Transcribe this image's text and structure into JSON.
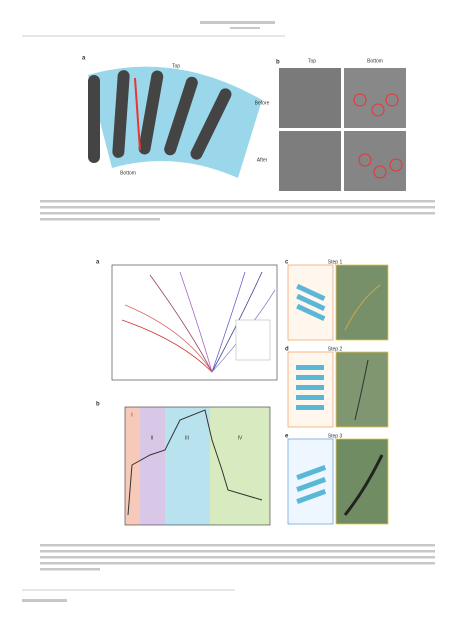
{
  "figure_top": {
    "panel_labels": [
      "a",
      "b"
    ],
    "diagram_labels": [
      "Top",
      "Bottom"
    ],
    "column_headers": [
      "Top",
      "Bottom"
    ],
    "row_labels": [
      "Before",
      "After"
    ]
  },
  "figure_bottom": {
    "panel_labels": [
      "a",
      "b",
      "c",
      "d",
      "e"
    ],
    "phase_labels": [
      "I",
      "II",
      "III",
      "IV"
    ],
    "step_labels": [
      "Step 1",
      "Step 2",
      "Step 3"
    ]
  }
}
